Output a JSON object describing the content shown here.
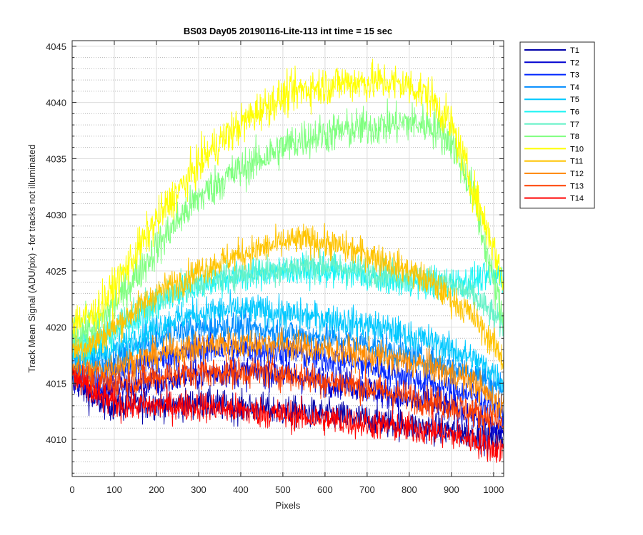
{
  "chart_data": {
    "type": "line",
    "title": "BS03 Day05 20190116-Lite-113 int time = 15 sec",
    "xlabel": "Pixels",
    "ylabel": "Track Mean Signal (ADU/pix) - for tracks not illuminated",
    "xlim": [
      0,
      1024
    ],
    "ylim": [
      4006.7,
      4045.5
    ],
    "xticks": [
      0,
      100,
      200,
      300,
      400,
      500,
      600,
      700,
      800,
      900,
      1000
    ],
    "yticks": [
      4010,
      4015,
      4020,
      4025,
      4030,
      4035,
      4040,
      4045
    ],
    "grid": true,
    "minor_grid_y": true,
    "legend_position": "outside-top-right",
    "x": [
      0,
      50,
      100,
      150,
      200,
      250,
      300,
      350,
      400,
      450,
      500,
      550,
      600,
      650,
      700,
      750,
      800,
      850,
      900,
      950,
      1000,
      1024
    ],
    "series": [
      {
        "name": "T1",
        "color": "#0000a8",
        "values": [
          4015.5,
          4013.5,
          4013.0,
          4013.0,
          4013.2,
          4013.0,
          4013.3,
          4013.0,
          4012.8,
          4012.8,
          4012.5,
          4012.4,
          4012.2,
          4012.0,
          4011.8,
          4011.5,
          4011.2,
          4011.0,
          4010.8,
          4010.5,
          4010.0,
          4010.0
        ]
      },
      {
        "name": "T2",
        "color": "#0000d0",
        "values": [
          4015.5,
          4014.5,
          4014.5,
          4014.8,
          4015.0,
          4015.5,
          4015.8,
          4016.0,
          4016.0,
          4016.0,
          4015.8,
          4015.5,
          4015.2,
          4015.0,
          4014.5,
          4014.0,
          4013.5,
          4013.2,
          4012.8,
          4012.2,
          4011.0,
          4010.8
        ]
      },
      {
        "name": "T3",
        "color": "#0026ff",
        "values": [
          4016.0,
          4015.5,
          4016.0,
          4016.5,
          4017.0,
          4017.5,
          4018.0,
          4018.0,
          4018.0,
          4018.0,
          4017.8,
          4017.5,
          4017.2,
          4017.0,
          4016.5,
          4016.0,
          4015.5,
          4015.0,
          4014.5,
          4014.0,
          4013.0,
          4012.5
        ]
      },
      {
        "name": "T4",
        "color": "#008cff",
        "values": [
          4016.5,
          4016.5,
          4017.0,
          4018.0,
          4018.8,
          4019.5,
          4019.8,
          4020.0,
          4020.0,
          4019.8,
          4019.5,
          4019.2,
          4019.0,
          4018.8,
          4018.5,
          4018.0,
          4017.5,
          4017.0,
          4016.5,
          4016.0,
          4015.0,
          4014.5
        ]
      },
      {
        "name": "T5",
        "color": "#00c8ff",
        "values": [
          4017.5,
          4017.5,
          4018.0,
          4019.0,
          4020.0,
          4020.8,
          4021.2,
          4021.5,
          4021.5,
          4021.5,
          4021.2,
          4021.0,
          4020.8,
          4020.5,
          4020.2,
          4019.8,
          4019.2,
          4018.8,
          4018.0,
          4017.2,
          4016.0,
          4015.0
        ]
      },
      {
        "name": "T6",
        "color": "#1af4f4",
        "values": [
          4018.5,
          4018.5,
          4019.5,
          4020.8,
          4022.0,
          4023.0,
          4023.8,
          4024.2,
          4024.5,
          4024.8,
          4025.0,
          4025.0,
          4025.0,
          4024.8,
          4024.5,
          4024.2,
          4024.0,
          4024.0,
          4024.0,
          4024.2,
          4024.5,
          4024.5
        ]
      },
      {
        "name": "T7",
        "color": "#66f2c8",
        "values": [
          4018.5,
          4019.0,
          4020.0,
          4021.5,
          4022.5,
          4023.5,
          4024.0,
          4024.5,
          4024.8,
          4025.0,
          4025.2,
          4025.5,
          4025.5,
          4025.2,
          4025.0,
          4024.8,
          4024.5,
          4024.2,
          4023.8,
          4022.8,
          4021.0,
          4020.0
        ]
      },
      {
        "name": "T8",
        "color": "#80ff80",
        "values": [
          4019.5,
          4020.0,
          4022.0,
          4024.5,
          4027.0,
          4029.5,
          4031.5,
          4033.0,
          4034.0,
          4035.0,
          4036.0,
          4036.8,
          4037.2,
          4037.5,
          4037.8,
          4038.0,
          4038.2,
          4038.0,
          4036.5,
          4032.0,
          4024.0,
          4020.5
        ]
      },
      {
        "name": "T10",
        "color": "#ffff00",
        "values": [
          4020.5,
          4021.0,
          4023.5,
          4026.5,
          4029.5,
          4032.0,
          4034.5,
          4036.5,
          4038.0,
          4039.5,
          4040.5,
          4041.2,
          4041.5,
          4041.8,
          4041.8,
          4041.8,
          4041.5,
          4040.5,
          4038.0,
          4032.5,
          4027.0,
          4024.0
        ]
      },
      {
        "name": "T11",
        "color": "#ffc400",
        "values": [
          4018.0,
          4018.5,
          4020.0,
          4021.5,
          4023.0,
          4024.0,
          4025.0,
          4025.8,
          4026.5,
          4027.0,
          4027.5,
          4027.8,
          4027.5,
          4027.0,
          4026.5,
          4025.8,
          4025.0,
          4024.0,
          4022.5,
          4021.0,
          4018.5,
          4017.0
        ]
      },
      {
        "name": "T12",
        "color": "#ff8c00",
        "values": [
          4016.5,
          4016.0,
          4016.5,
          4017.0,
          4017.5,
          4018.0,
          4018.2,
          4018.5,
          4018.5,
          4018.5,
          4018.5,
          4018.2,
          4018.0,
          4017.8,
          4017.5,
          4017.2,
          4016.8,
          4016.5,
          4015.8,
          4015.2,
          4013.5,
          4013.0
        ]
      },
      {
        "name": "T13",
        "color": "#ff4000",
        "values": [
          4016.0,
          4015.0,
          4015.0,
          4015.2,
          4015.5,
          4015.8,
          4016.0,
          4016.0,
          4016.0,
          4016.0,
          4015.8,
          4015.5,
          4015.2,
          4015.0,
          4014.6,
          4014.2,
          4013.8,
          4013.4,
          4013.0,
          4012.5,
          4011.8,
          4011.2
        ]
      },
      {
        "name": "T14",
        "color": "#ff0000",
        "values": [
          4015.8,
          4014.0,
          4013.2,
          4013.0,
          4013.0,
          4013.0,
          4013.0,
          4012.8,
          4012.6,
          4012.4,
          4012.2,
          4012.0,
          4011.8,
          4011.6,
          4011.4,
          4011.2,
          4011.0,
          4010.8,
          4010.4,
          4010.0,
          4009.2,
          4009.0
        ]
      }
    ]
  }
}
